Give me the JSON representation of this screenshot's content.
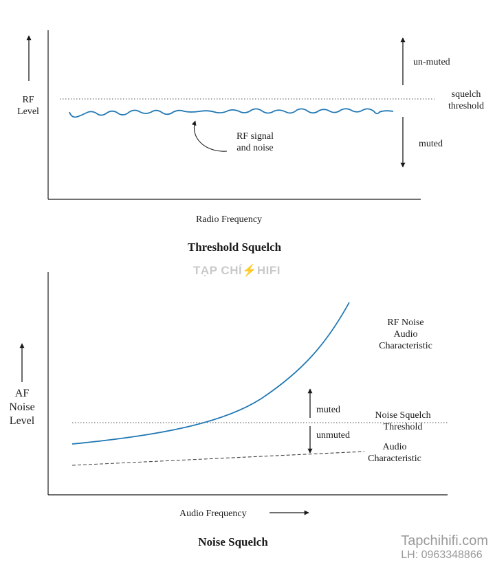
{
  "top_diagram": {
    "y_axis_label_line1": "RF",
    "y_axis_label_line2": "Level",
    "x_axis_label": "Radio Frequency",
    "unmuted_label": "un-muted",
    "squelch_label_line1": "squelch",
    "squelch_label_line2": "threshold",
    "muted_label": "muted",
    "signal_label_line1": "RF signal",
    "signal_label_line2": "and noise",
    "title": "Threshold Squelch"
  },
  "bottom_diagram": {
    "y_axis_label_line1": "AF",
    "y_axis_label_line2": "Noise",
    "y_axis_label_line3": "Level",
    "x_axis_label": "Audio Frequency",
    "rf_noise_line1": "RF Noise",
    "rf_noise_line2": "Audio",
    "rf_noise_line3": "Characteristic",
    "muted_label": "muted",
    "unmuted_label": "unmuted",
    "threshold_line1": "Noise Squelch",
    "threshold_line2": "Threshold",
    "audio_line1": "Audio",
    "audio_line2": "Characteristic",
    "title": "Noise Squelch"
  },
  "watermark": {
    "part1": "TẠP CHÍ",
    "part2": "HIFI"
  },
  "brand": {
    "site": "Tapchihifi.com",
    "phone": "LH: 0963348866"
  },
  "colors": {
    "curve": "#1f77b4",
    "ink": "#1a1a1a"
  }
}
